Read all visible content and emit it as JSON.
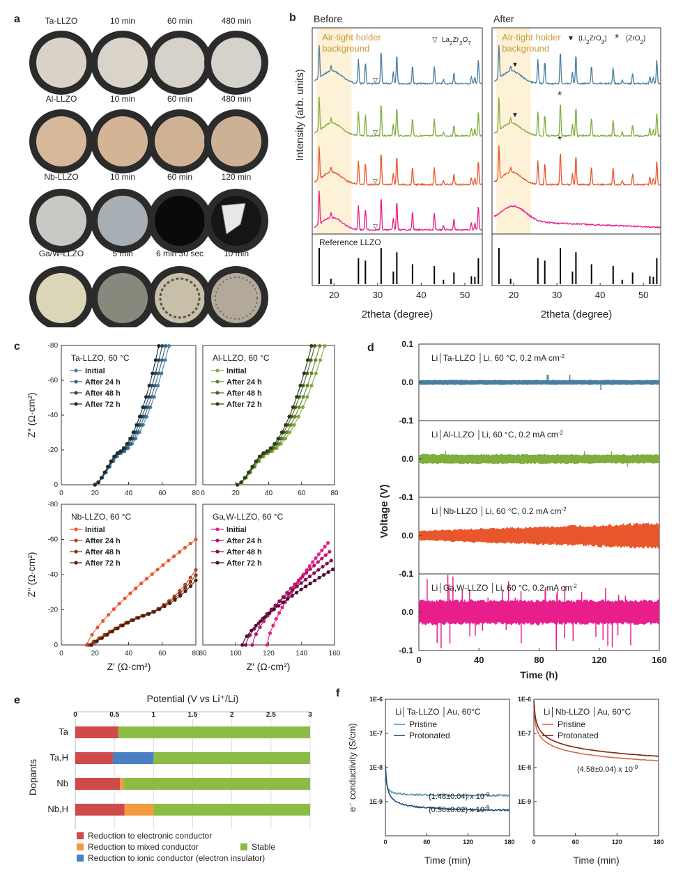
{
  "colors": {
    "ta": "#4a7ea0",
    "al": "#7fae3d",
    "nb": "#e8572b",
    "ga": "#e81e8c",
    "bg_band": "#fdf1d8",
    "band_text": "#c99a3a",
    "stable": "#8cbc46",
    "electronic": "#cf4a4a",
    "mixed": "#f39a3e",
    "ionic": "#4a7fc4",
    "ecs_pristine_ta": "#5c8ea8",
    "ecs_protonated_ta": "#1d4f7c",
    "ecs_pristine_nb": "#d46a45",
    "ecs_protonated_nb": "#7a2514"
  },
  "panel_a": {
    "letter": "a",
    "rows": [
      {
        "label": "Ta-LLZO",
        "times": [
          "10 min",
          "60 min",
          "480 min"
        ],
        "fills": [
          "#d8d2c8",
          "#d9d3c9",
          "#d6d1c9",
          "#d5d1cb"
        ]
      },
      {
        "label": "Al-LLZO",
        "times": [
          "10 min",
          "60 min",
          "480 min"
        ],
        "fills": [
          "#d7b898",
          "#d3b596",
          "#cfb293",
          "#cdb194"
        ]
      },
      {
        "label": "Nb-LLZO",
        "times": [
          "10 min",
          "60 min",
          "120 min"
        ],
        "fills": [
          "#c7c9c4",
          "#a7afb4",
          "#0a0a0a",
          "#151515"
        ]
      },
      {
        "label": "Ga/W-LLZO",
        "times": [
          "5 min",
          "6 min 30 sec",
          "10 min"
        ],
        "fills": [
          "#dad6b7",
          "#868a7c",
          "#c8bfa8",
          "#b3a99a"
        ]
      }
    ]
  },
  "panel_b": {
    "letter": "b",
    "before": "Before",
    "after": "After",
    "band_text": "Air-tight holder\nbackground",
    "marker_before": "La",
    "marker_before_sub": "2",
    "marker_before_2": "Zr",
    "marker_before_sub2": "2",
    "marker_before_3": "O",
    "marker_before_sub3": "7",
    "marker_after_1": "(Li",
    "marker_after_1_sub": "2",
    "marker_after_1_b": "ZrO",
    "marker_after_1_sub2": "3",
    "marker_after_1_c": ")",
    "marker_after_2": "(ZrO",
    "marker_after_2_sub": "2",
    "marker_after_2_c": ")",
    "ylabel": "Intensity (arb. units)",
    "xlabel": "2theta (degree)",
    "reference_label": "Reference LLZO",
    "xticks": [
      20,
      30,
      40,
      50
    ],
    "xlim": [
      15,
      54
    ]
  },
  "chart_data": [
    {
      "type": "bar",
      "panel": "b-reference",
      "x": [
        16.6,
        19.3,
        25.6,
        27.2,
        30.8,
        33.6,
        34.4,
        38.0,
        43.0,
        45.1,
        47.5,
        51.5,
        52.3,
        53.1
      ],
      "values": [
        1.0,
        0.15,
        0.72,
        0.65,
        1.0,
        0.35,
        0.88,
        0.55,
        0.5,
        0.12,
        0.32,
        0.22,
        0.2,
        0.72
      ]
    },
    {
      "type": "scatter",
      "panel": "c",
      "title": "Ta-LLZO, 60 °C",
      "xlabel": "Z′ (Ω·cm²)",
      "ylabel": "Z″ (Ω·cm²)",
      "xlim": [
        0,
        80
      ],
      "ylim": [
        0,
        -80
      ],
      "xticks": [
        0,
        20,
        40,
        60,
        80
      ],
      "yticks": [
        0,
        -20,
        -40,
        -60,
        -80
      ],
      "series": [
        {
          "name": "Initial",
          "x_start": 20,
          "x_end": 64
        },
        {
          "name": "After 24 h",
          "x_start": 20,
          "x_end": 62
        },
        {
          "name": "After 48 h",
          "x_start": 20,
          "x_end": 60
        },
        {
          "name": "After 72 h",
          "x_start": 20,
          "x_end": 58
        }
      ]
    },
    {
      "type": "scatter",
      "panel": "c",
      "title": "Al-LLZO, 60 °C",
      "xlim": [
        0,
        80
      ],
      "ylim": [
        0,
        -80
      ],
      "xticks": [
        0,
        20,
        40,
        60,
        80
      ],
      "yticks": [
        0,
        -20,
        -40,
        -60,
        -80
      ],
      "series": [
        {
          "name": "Initial",
          "x_start": 21,
          "x_end": 74
        },
        {
          "name": "After 24 h",
          "x_start": 21,
          "x_end": 71
        },
        {
          "name": "After 48 h",
          "x_start": 21,
          "x_end": 68
        },
        {
          "name": "After 72 h",
          "x_start": 21,
          "x_end": 66
        }
      ]
    },
    {
      "type": "scatter",
      "panel": "c",
      "title": "Nb-LLZO, 60 °C",
      "xlim": [
        0,
        80
      ],
      "ylim": [
        0,
        -80
      ],
      "xticks": [
        0,
        20,
        40,
        60,
        80
      ],
      "yticks": [
        0,
        -20,
        -40,
        -60,
        -80
      ],
      "series": [
        {
          "name": "Initial",
          "x_start": 15,
          "x_end": 80
        },
        {
          "name": "After 24 h",
          "x_start": 16,
          "x_end": 80
        },
        {
          "name": "After 48 h",
          "x_start": 17,
          "x_end": 80
        },
        {
          "name": "After 72 h",
          "x_start": 18,
          "x_end": 80
        }
      ]
    },
    {
      "type": "scatter",
      "panel": "c",
      "title": "Ga,W-LLZO, 60 °C",
      "xlim": [
        80,
        160
      ],
      "ylim": [
        0,
        -80
      ],
      "xticks": [
        80,
        100,
        120,
        140,
        160
      ],
      "yticks": [
        0,
        -20,
        -40,
        -60,
        -80
      ],
      "series": [
        {
          "name": "Initial",
          "x_start": 119,
          "x_end": 156
        },
        {
          "name": "After 24 h",
          "x_start": 110,
          "x_end": 157
        },
        {
          "name": "After 48 h",
          "x_start": 106,
          "x_end": 158
        },
        {
          "name": "After 72 h",
          "x_start": 104,
          "x_end": 159
        }
      ]
    },
    {
      "type": "line",
      "panel": "d",
      "ylabel": "Voltage (V)",
      "xlabel": "Time (h)",
      "xlim": [
        0,
        160
      ],
      "ylim": [
        -0.1,
        0.1
      ],
      "xticks": [
        0,
        40,
        80,
        120,
        160
      ],
      "series": [
        {
          "name": "Ta-LLZO",
          "amp_start": 0.006,
          "amp_end": 0.006
        },
        {
          "name": "Al-LLZO",
          "amp_start": 0.012,
          "amp_end": 0.011
        },
        {
          "name": "Nb-LLZO",
          "amp_start": 0.012,
          "amp_end": 0.032
        },
        {
          "name": "Ga/W-LLZO",
          "amp_start": 0.03,
          "amp_end": 0.03
        }
      ]
    },
    {
      "type": "bar",
      "panel": "e",
      "title": "Potential (V vs Li⁺/Li)",
      "ylabel": "Dopants",
      "xlim": [
        0,
        3
      ],
      "xticks": [
        0,
        0.5,
        1,
        1.5,
        2,
        2.5,
        3
      ],
      "categories": [
        "Ta",
        "Ta,H",
        "Nb",
        "Nb,H"
      ],
      "segments": [
        [
          {
            "kind": "electronic",
            "from": 0,
            "to": 0.55
          },
          {
            "kind": "stable",
            "from": 0.55,
            "to": 3
          }
        ],
        [
          {
            "kind": "electronic",
            "from": 0,
            "to": 0.48
          },
          {
            "kind": "ionic",
            "from": 0.48,
            "to": 1.0
          },
          {
            "kind": "stable",
            "from": 1.0,
            "to": 3
          }
        ],
        [
          {
            "kind": "electronic",
            "from": 0,
            "to": 0.57
          },
          {
            "kind": "mixed",
            "from": 0.57,
            "to": 0.62
          },
          {
            "kind": "stable",
            "from": 0.62,
            "to": 3
          }
        ],
        [
          {
            "kind": "electronic",
            "from": 0,
            "to": 0.63
          },
          {
            "kind": "mixed",
            "from": 0.63,
            "to": 1.0
          },
          {
            "kind": "stable",
            "from": 1.0,
            "to": 3
          }
        ]
      ]
    },
    {
      "type": "line",
      "panel": "f",
      "ylabel": "e⁻ conductivity (S/cm)",
      "xlabel": "Time (min)",
      "xlim": [
        0,
        180
      ],
      "ylim": [
        1e-10,
        1e-06
      ],
      "yscale": "log",
      "xticks": [
        0,
        60,
        120,
        180
      ],
      "series": [
        {
          "name": "Pristine",
          "final": 1.48e-09
        },
        {
          "name": "Protonated",
          "final": 5e-10
        }
      ]
    },
    {
      "type": "line",
      "panel": "f",
      "xlabel": "Time (min)",
      "xlim": [
        0,
        180
      ],
      "ylim": [
        1e-10,
        1e-06
      ],
      "yscale": "log",
      "xticks": [
        0,
        60,
        120,
        180
      ],
      "series": [
        {
          "name": "Pristine",
          "final": 4.58e-09
        },
        {
          "name": "Protonated",
          "final": 4.58e-09
        }
      ]
    }
  ],
  "panel_c": {
    "letter": "c"
  },
  "panel_d": {
    "letter": "d",
    "labels": [
      {
        "a": "Li",
        "b": "Ta-LLZO",
        "c": "Li, 60 °C, 0.2 mA cm",
        "sup": "-2"
      },
      {
        "a": "Li",
        "b": "Al-LLZO",
        "c": "Li, 60 °C, 0.2 mA cm",
        "sup": "-2"
      },
      {
        "a": "Li",
        "b": "Nb-LLZO",
        "c": "Li, 60 °C, 0.2 mA cm",
        "sup": "-2"
      },
      {
        "a": "Li",
        "b": "Ga,W-LLZO",
        "c": "Li, 60 °C, 0.2 mA cm",
        "sup": "-2"
      }
    ],
    "yticks": [
      "0.1",
      "0.0",
      "-0.1"
    ]
  },
  "panel_e": {
    "letter": "e",
    "legend": [
      {
        "kind": "electronic",
        "label": "Reduction to electronic conductor"
      },
      {
        "kind": "mixed",
        "label": "Reduction to mixed conductor"
      },
      {
        "kind": "ionic",
        "label": "Reduction to ionic conductor (electron insulator)"
      },
      {
        "kind": "stable",
        "label": "Stable"
      }
    ]
  },
  "panel_f": {
    "letter": "f",
    "left": {
      "title_a": "Li",
      "title_b": "Ta-LLZO",
      "title_c": "Au, 60°C",
      "pristine": "Pristine",
      "protonated": "Protonated",
      "ann1": "(1.48±0.04) x 10",
      "ann1_sup": "-9",
      "ann2": "(0.50±0.02) x 10",
      "ann2_sup": "-9"
    },
    "right": {
      "title_a": "Li",
      "title_b": "Nb-LLZO",
      "title_c": "Au, 60°C",
      "pristine": "Pristine",
      "protonated": "Protonated",
      "ann1": "(4.58±0.04) x 10",
      "ann1_sup": "-9"
    },
    "yticks": [
      "1E-6",
      "1E-7",
      "1E-8",
      "1E-9"
    ]
  }
}
